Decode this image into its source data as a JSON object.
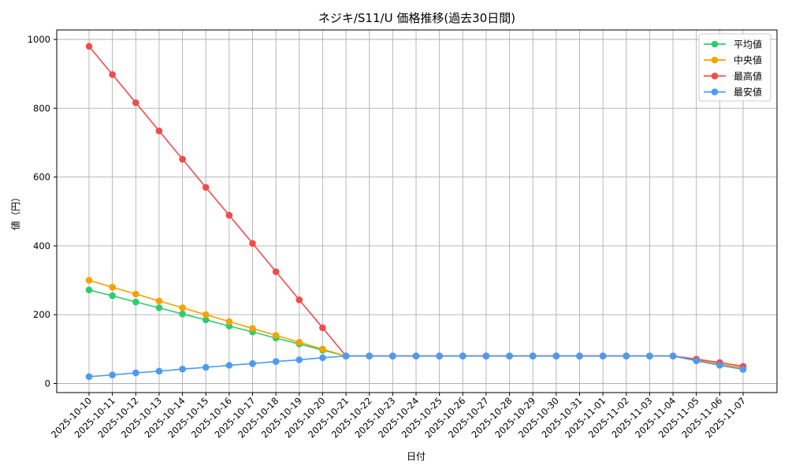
{
  "chart_data": {
    "type": "line",
    "title": "ネジキ/S11/U 価格推移(過去30日間)",
    "xlabel": "日付",
    "ylabel": "値（円）",
    "ylim": [
      -28,
      1028
    ],
    "yticks": [
      0,
      200,
      400,
      600,
      800,
      1000
    ],
    "grid": true,
    "legend_position": "upper right",
    "x": [
      "2025-10-10",
      "2025-10-11",
      "2025-10-12",
      "2025-10-13",
      "2025-10-14",
      "2025-10-15",
      "2025-10-16",
      "2025-10-17",
      "2025-10-18",
      "2025-10-19",
      "2025-10-20",
      "2025-10-21",
      "2025-10-22",
      "2025-10-23",
      "2025-10-24",
      "2025-10-25",
      "2025-10-26",
      "2025-10-27",
      "2025-10-28",
      "2025-10-29",
      "2025-10-30",
      "2025-10-31",
      "2025-11-01",
      "2025-11-02",
      "2025-11-03",
      "2025-11-04",
      "2025-11-05",
      "2025-11-06",
      "2025-11-07"
    ],
    "series": [
      {
        "name": "平均値",
        "color": "#2ecc71",
        "values": [
          272,
          255,
          237,
          220,
          202,
          185,
          167,
          150,
          132,
          115,
          97,
          80,
          80,
          80,
          80,
          80,
          80,
          80,
          80,
          80,
          80,
          80,
          80,
          80,
          80,
          80,
          68,
          56,
          45
        ]
      },
      {
        "name": "中央値",
        "color": "#f5a300",
        "values": [
          300,
          280,
          260,
          240,
          220,
          200,
          180,
          160,
          140,
          120,
          100,
          80,
          80,
          80,
          80,
          80,
          80,
          80,
          80,
          80,
          80,
          80,
          80,
          80,
          80,
          80,
          68,
          56,
          45
        ]
      },
      {
        "name": "最高値",
        "color": "#f24b4b",
        "values": [
          980,
          898,
          816,
          734,
          652,
          570,
          489,
          407,
          325,
          243,
          162,
          80,
          80,
          80,
          80,
          80,
          80,
          80,
          80,
          80,
          80,
          80,
          80,
          80,
          80,
          80,
          71,
          61,
          50
        ]
      },
      {
        "name": "最安値",
        "color": "#4d9bf0",
        "values": [
          20,
          25,
          31,
          36,
          42,
          47,
          53,
          58,
          64,
          69,
          75,
          80,
          80,
          80,
          80,
          80,
          80,
          80,
          80,
          80,
          80,
          80,
          80,
          80,
          80,
          80,
          66,
          53,
          41
        ]
      }
    ]
  }
}
